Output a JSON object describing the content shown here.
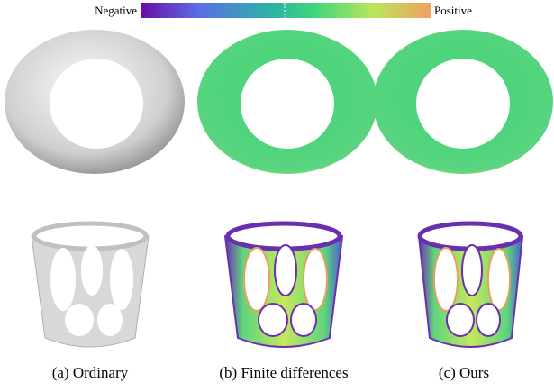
{
  "colorbar": {
    "min_label": "Negative",
    "max_label": "Positive"
  },
  "panels": [
    {
      "caption": "(a) Ordinary"
    },
    {
      "caption": "(b) Finite differences"
    },
    {
      "caption": "(c) Ours"
    }
  ]
}
